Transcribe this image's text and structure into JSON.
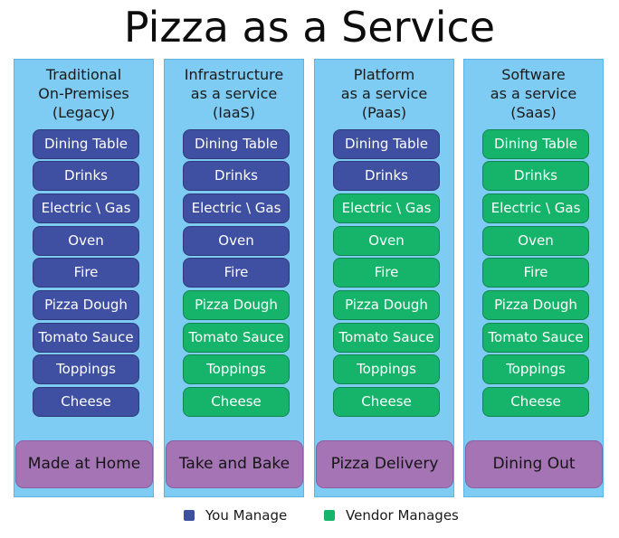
{
  "title": "Pizza as a Service",
  "colors": {
    "you_manage": "#3f4fa2",
    "vendor_manages": "#16b46a",
    "column_bg": "#7ecbf3",
    "footer_bg": "#a574b5"
  },
  "layers": [
    "Dining Table",
    "Drinks",
    "Electric \\ Gas",
    "Oven",
    "Fire",
    "Pizza Dough",
    "Tomato Sauce",
    "Toppings",
    "Cheese"
  ],
  "columns": [
    {
      "header": [
        "Traditional",
        "On-Premises",
        "(Legacy)"
      ],
      "managed_by": [
        "you",
        "you",
        "you",
        "you",
        "you",
        "you",
        "you",
        "you",
        "you"
      ],
      "footer": "Made at Home"
    },
    {
      "header": [
        "Infrastructure",
        "as a service",
        "(IaaS)"
      ],
      "managed_by": [
        "you",
        "you",
        "you",
        "you",
        "you",
        "vendor",
        "vendor",
        "vendor",
        "vendor"
      ],
      "footer": "Take and Bake"
    },
    {
      "header": [
        "Platform",
        "as a service",
        "(Paas)"
      ],
      "managed_by": [
        "you",
        "you",
        "vendor",
        "vendor",
        "vendor",
        "vendor",
        "vendor",
        "vendor",
        "vendor"
      ],
      "footer": "Pizza Delivery"
    },
    {
      "header": [
        "Software",
        "as a service",
        "(Saas)"
      ],
      "managed_by": [
        "vendor",
        "vendor",
        "vendor",
        "vendor",
        "vendor",
        "vendor",
        "vendor",
        "vendor",
        "vendor"
      ],
      "footer": "Dining Out"
    }
  ],
  "legend": {
    "you_manage": "You Manage",
    "vendor_manages": "Vendor Manages"
  }
}
